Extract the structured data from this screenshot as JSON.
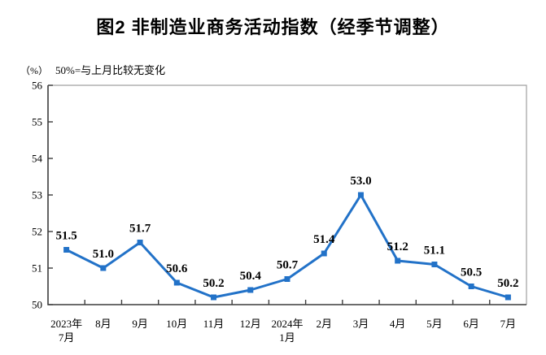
{
  "title": "图2 非制造业商务活动指数（经季节调整）",
  "chart_data": {
    "type": "line",
    "title": "图2 非制造业商务活动指数（经季节调整）",
    "unit_label": "（%）",
    "note": "50%=与上月比较无变化",
    "categories": [
      {
        "label": "2023年",
        "label2": "7月"
      },
      {
        "label": "8月"
      },
      {
        "label": "9月"
      },
      {
        "label": "10月"
      },
      {
        "label": "11月"
      },
      {
        "label": "12月"
      },
      {
        "label": "2024年",
        "label2": "1月"
      },
      {
        "label": "2月"
      },
      {
        "label": "3月"
      },
      {
        "label": "4月"
      },
      {
        "label": "5月"
      },
      {
        "label": "6月"
      },
      {
        "label": "7月"
      }
    ],
    "values": [
      51.5,
      51.0,
      51.7,
      50.6,
      50.2,
      50.4,
      50.7,
      51.4,
      53.0,
      51.2,
      51.1,
      50.5,
      50.2
    ],
    "ylim": [
      50,
      56
    ],
    "y_ticks": [
      50,
      51,
      52,
      53,
      54,
      55,
      56
    ],
    "data_labels": true,
    "grid": false,
    "legend": "none",
    "marker": "square",
    "colors": {
      "line": "#2272C8",
      "axis": "#3c3c3c",
      "frame": "#a0a0a0",
      "text": "#000000"
    }
  }
}
